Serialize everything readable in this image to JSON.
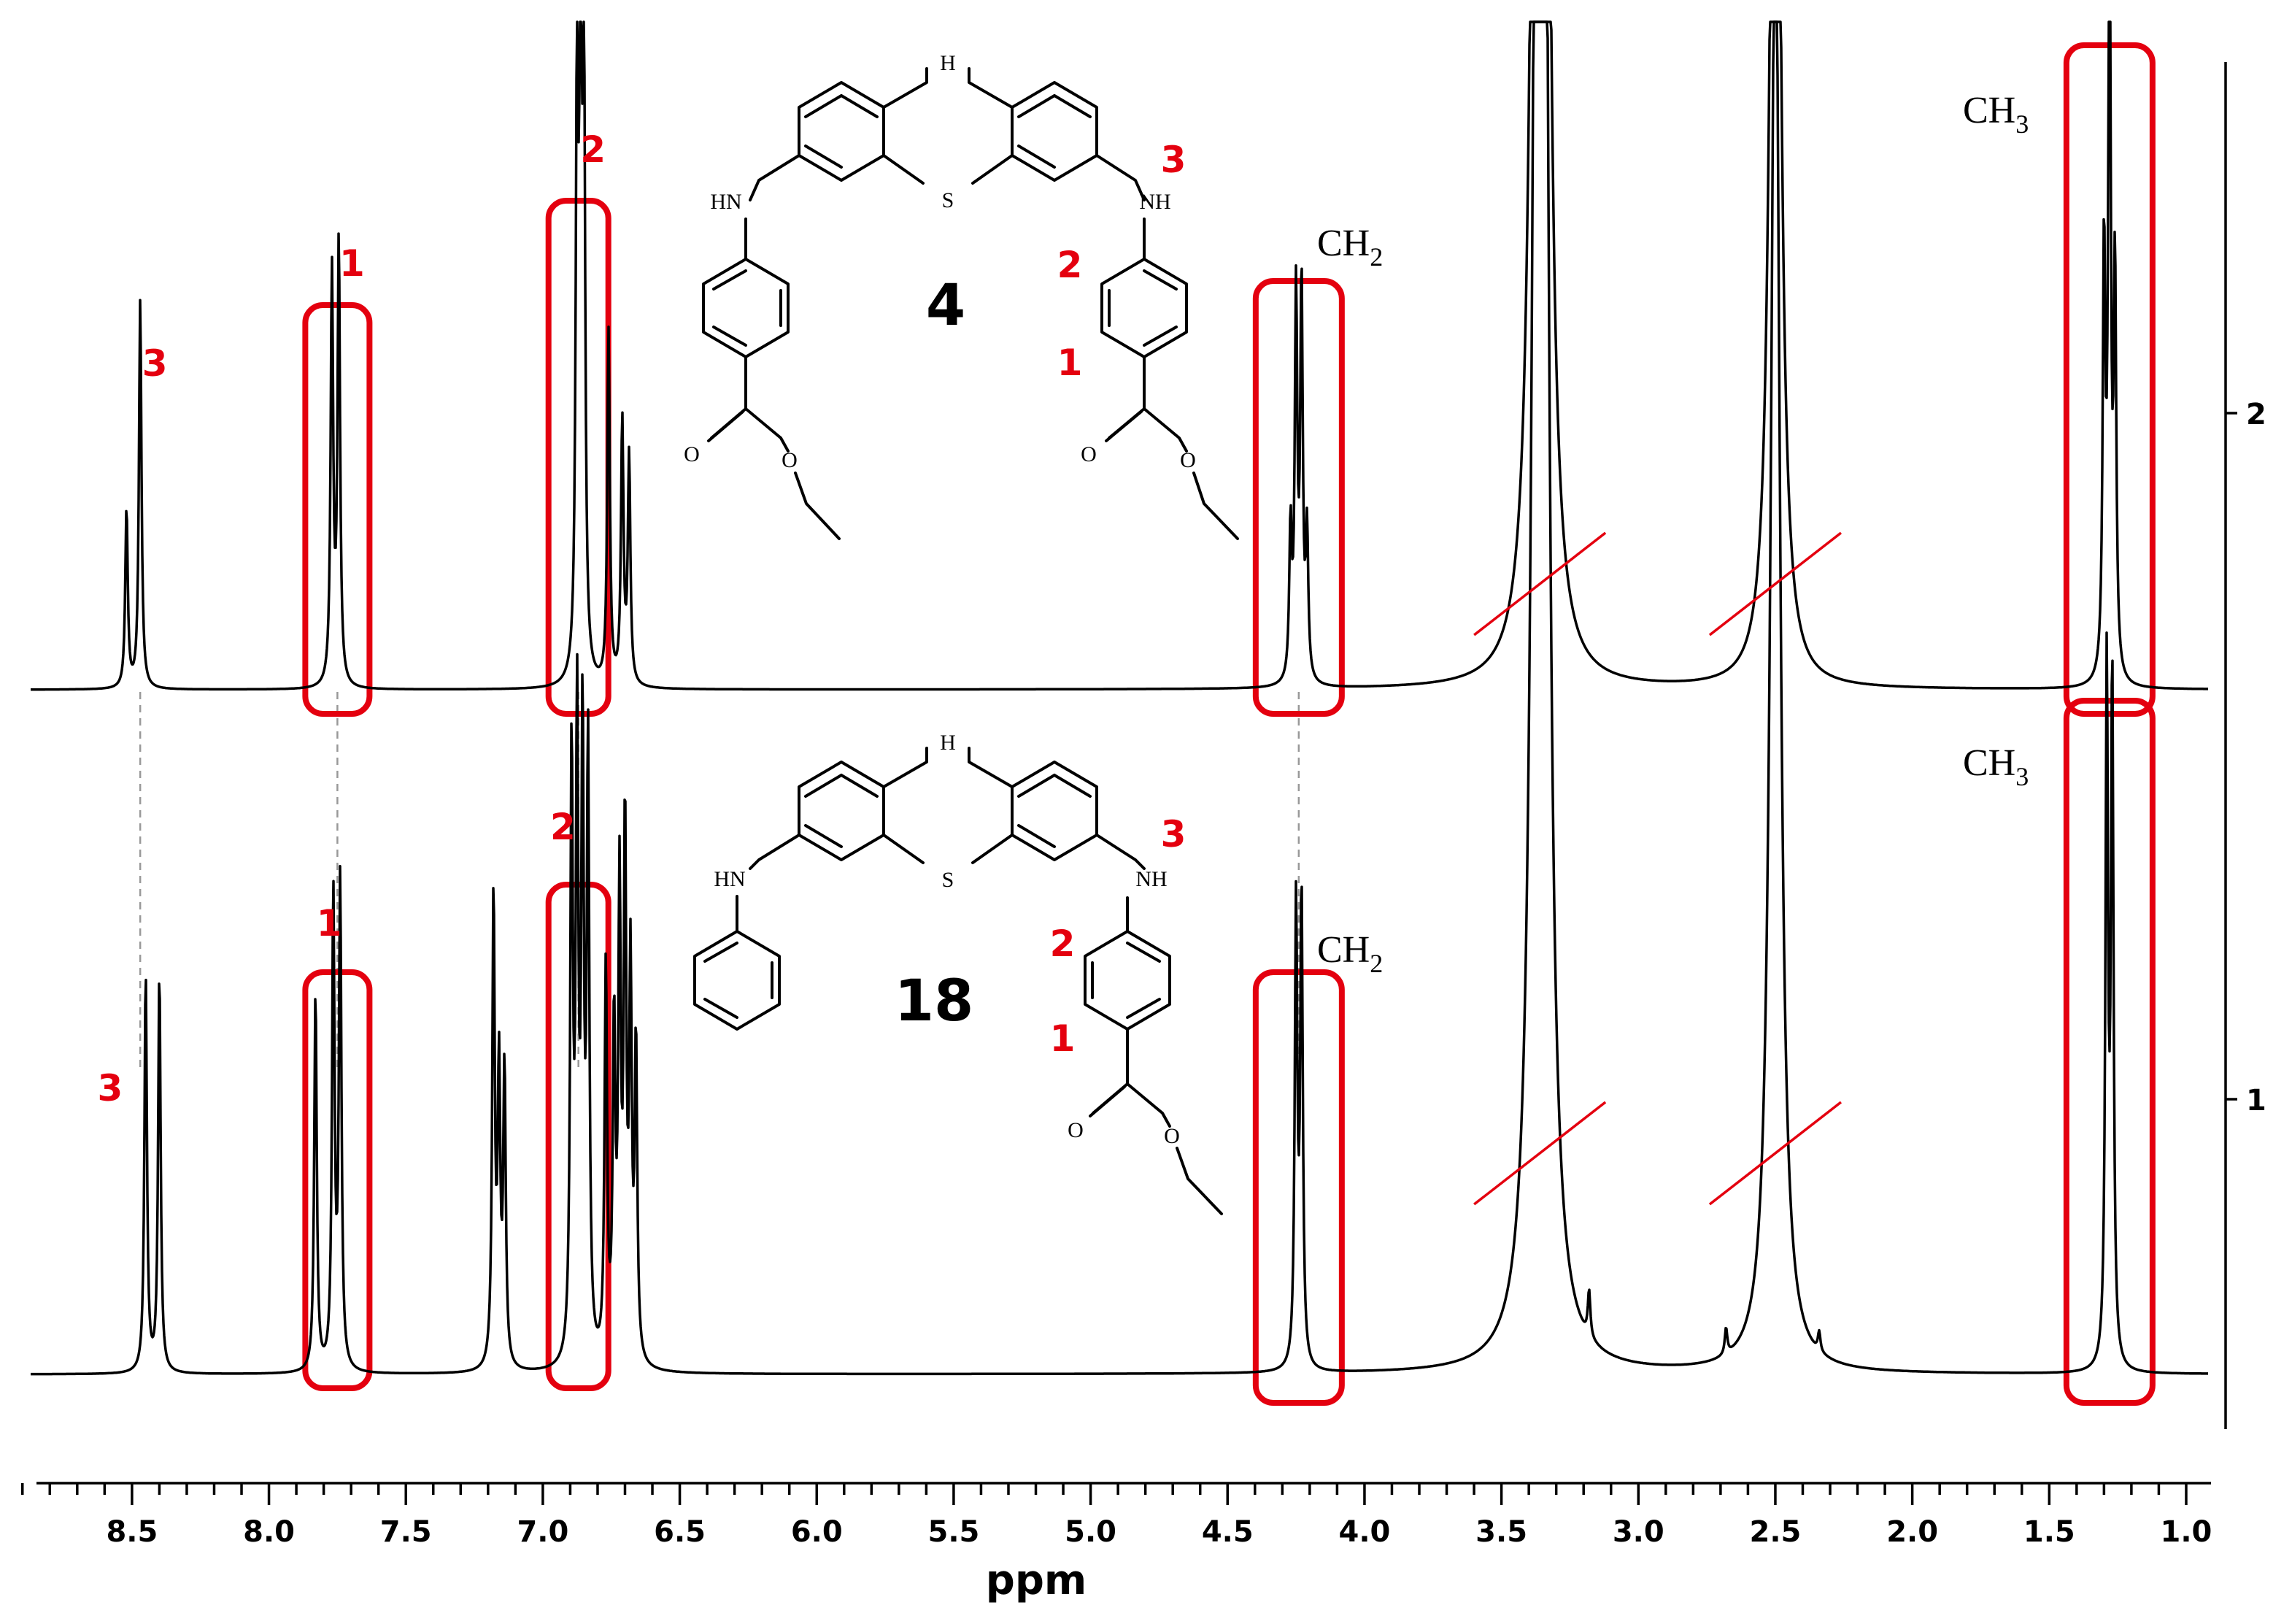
{
  "chart_data": {
    "type": "line",
    "xlabel": "ppm",
    "x_ticks": [
      "8.5",
      "8.0",
      "7.5",
      "7.0",
      "6.5",
      "6.0",
      "5.5",
      "5.0",
      "4.5",
      "4.0",
      "3.5",
      "3.0",
      "2.5",
      "2.0",
      "1.5",
      "1.0"
    ],
    "xlim": [
      8.87,
      0.92
    ],
    "x_reversed": true,
    "right_axis_ticks": [
      "2",
      "1"
    ],
    "grid": false,
    "legend": "none",
    "series": [
      {
        "name": "2",
        "compound": "4",
        "peaks": [
          {
            "ppm": 8.52,
            "height": 0.3
          },
          {
            "ppm": 8.47,
            "height": 0.65
          },
          {
            "ppm": 7.77,
            "height": 0.69
          },
          {
            "ppm": 7.745,
            "height": 0.74
          },
          {
            "ppm": 6.875,
            "height": 1.0
          },
          {
            "ppm": 6.862,
            "height": 0.99
          },
          {
            "ppm": 6.85,
            "height": 0.98
          },
          {
            "ppm": 6.76,
            "height": 0.59
          },
          {
            "ppm": 6.71,
            "height": 0.44
          },
          {
            "ppm": 6.685,
            "height": 0.38
          },
          {
            "ppm": 4.27,
            "height": 0.25
          },
          {
            "ppm": 4.25,
            "height": 0.64
          },
          {
            "ppm": 4.23,
            "height": 0.66
          },
          {
            "ppm": 4.21,
            "height": 0.24
          },
          {
            "ppm": 3.37,
            "height": 2.3
          },
          {
            "ppm": 3.345,
            "height": 2.3
          },
          {
            "ppm": 2.5,
            "height": 2.3
          },
          {
            "ppm": 1.3,
            "height": 0.71
          },
          {
            "ppm": 1.28,
            "height": 1.32
          },
          {
            "ppm": 1.26,
            "height": 0.67
          }
        ]
      },
      {
        "name": "1",
        "compound": "18",
        "peaks": [
          {
            "ppm": 8.45,
            "height": 0.61
          },
          {
            "ppm": 8.4,
            "height": 0.61
          },
          {
            "ppm": 7.83,
            "height": 0.58
          },
          {
            "ppm": 7.765,
            "height": 0.72
          },
          {
            "ppm": 7.74,
            "height": 0.74
          },
          {
            "ppm": 7.18,
            "height": 0.72
          },
          {
            "ppm": 7.16,
            "height": 0.44
          },
          {
            "ppm": 7.14,
            "height": 0.45
          },
          {
            "ppm": 6.895,
            "height": 0.92
          },
          {
            "ppm": 6.875,
            "height": 0.95
          },
          {
            "ppm": 6.855,
            "height": 0.93
          },
          {
            "ppm": 6.835,
            "height": 0.92
          },
          {
            "ppm": 6.77,
            "height": 0.6
          },
          {
            "ppm": 6.74,
            "height": 0.5
          },
          {
            "ppm": 6.72,
            "height": 0.7
          },
          {
            "ppm": 6.7,
            "height": 0.8
          },
          {
            "ppm": 6.68,
            "height": 0.58
          },
          {
            "ppm": 6.66,
            "height": 0.48
          },
          {
            "ppm": 4.25,
            "height": 0.7
          },
          {
            "ppm": 4.23,
            "height": 0.72
          },
          {
            "ppm": 3.37,
            "height": 2.3
          },
          {
            "ppm": 3.345,
            "height": 2.3
          },
          {
            "ppm": 3.18,
            "height": 0.07
          },
          {
            "ppm": 2.68,
            "height": 0.04
          },
          {
            "ppm": 2.5,
            "height": 2.3
          },
          {
            "ppm": 2.34,
            "height": 0.03
          },
          {
            "ppm": 1.29,
            "height": 1.06
          },
          {
            "ppm": 1.27,
            "height": 1.05
          }
        ]
      }
    ],
    "annotations": {
      "top": {
        "compound_label": "4",
        "peak_labels": [
          {
            "text": "3",
            "ppm": 8.47
          },
          {
            "text": "1",
            "ppm": 7.75
          },
          {
            "text": "2",
            "ppm": 6.87
          }
        ],
        "group_labels": [
          {
            "text": "CH",
            "sub": "2",
            "ppm": 4.24
          },
          {
            "text": "CH",
            "sub": "3",
            "ppm": 1.28
          }
        ],
        "structure_labels": [
          "H",
          "HN",
          "NH",
          "S",
          "O",
          "O",
          "O",
          "O",
          "3",
          "2",
          "1"
        ]
      },
      "bottom": {
        "compound_label": "18",
        "peak_labels": [
          {
            "text": "3",
            "ppm": 8.45
          },
          {
            "text": "1",
            "ppm": 7.75
          },
          {
            "text": "2",
            "ppm": 6.87
          }
        ],
        "group_labels": [
          {
            "text": "CH",
            "sub": "2",
            "ppm": 4.24
          },
          {
            "text": "CH",
            "sub": "3",
            "ppm": 1.28
          }
        ],
        "structure_labels": [
          "H",
          "HN",
          "NH",
          "S",
          "O",
          "O",
          "3",
          "2",
          "1"
        ]
      }
    },
    "colors": {
      "highlight": "#e4000f",
      "trace": "#000000",
      "guide": "#999999"
    }
  }
}
